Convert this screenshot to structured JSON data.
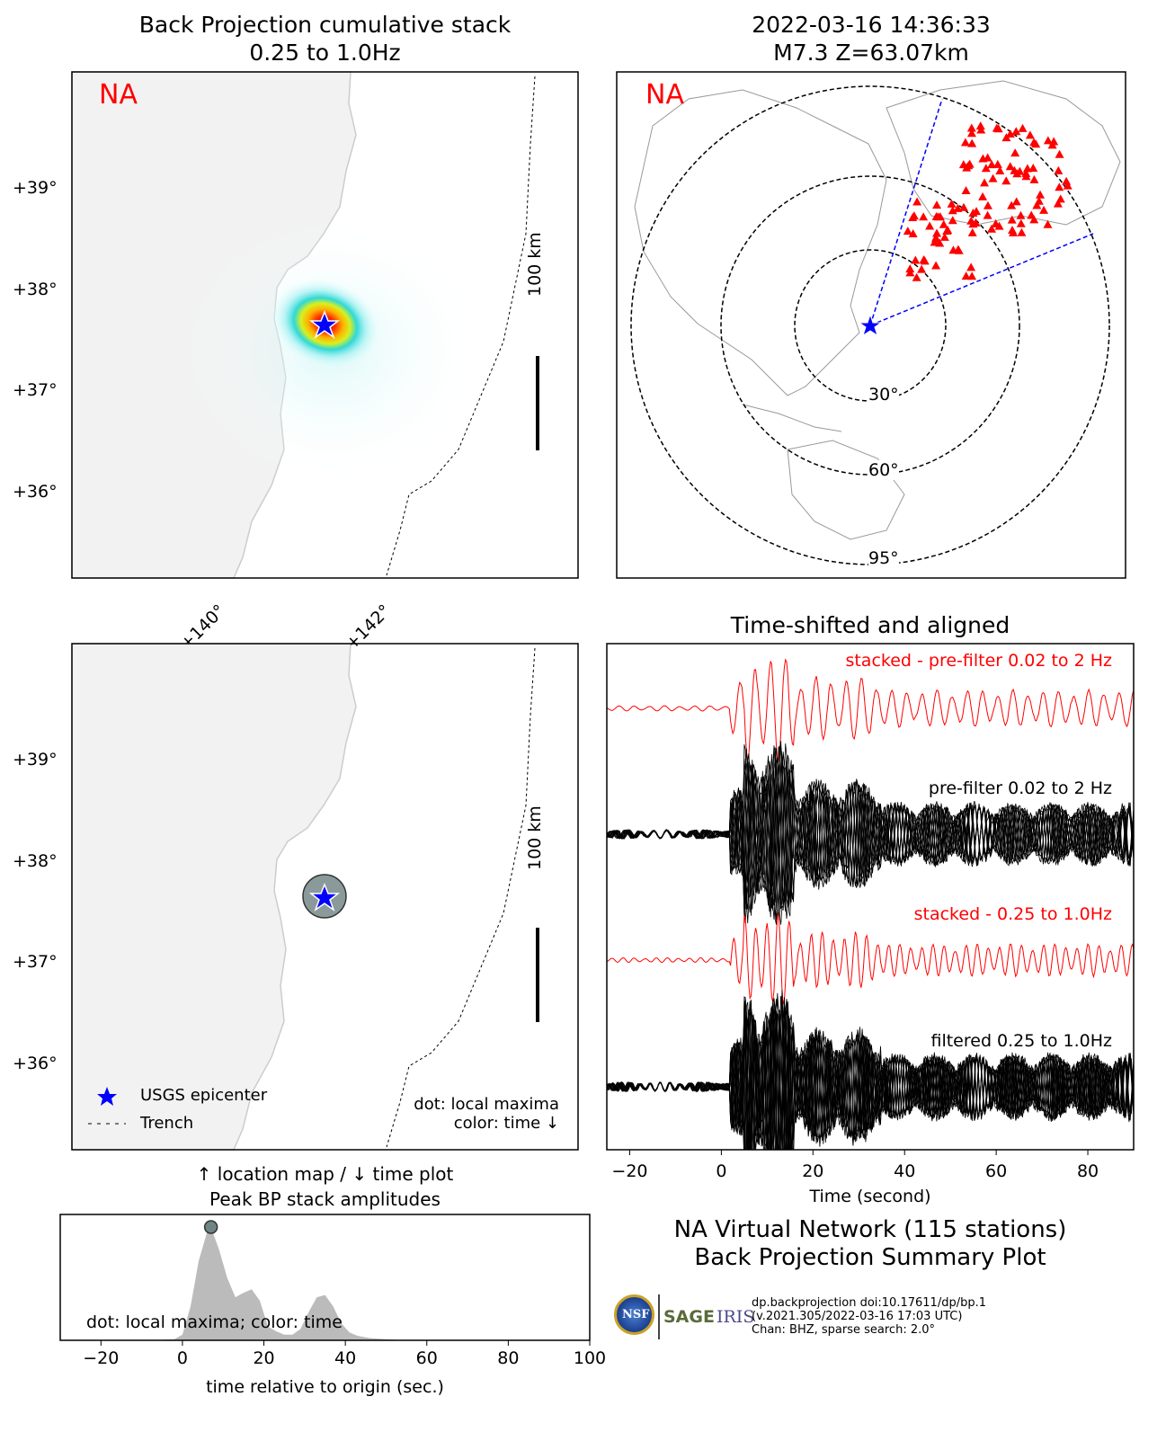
{
  "maps_panel": {
    "title_line1": "Back Projection cumulative stack",
    "title_line2": "0.25 to 1.0Hz",
    "region_label": "NA",
    "lat_ticks": [
      "+39°",
      "+38°",
      "+37°",
      "+36°"
    ],
    "lon_ticks": [
      "+140°",
      "+142°"
    ],
    "scale_bar_label": "100 km",
    "legend_epicenter": "USGS epicenter",
    "legend_trench": "Trench",
    "note_line1": "dot: local maxima",
    "note_line2": "color: time ↓",
    "caption_line1": "↑ location map / ↓ time plot",
    "caption_line2": "Peak BP stack amplitudes",
    "epicenter_color": "#0000ff",
    "region_label_color": "#ff0000"
  },
  "event_panel": {
    "title_line1": "2022-03-16 14:36:33",
    "title_line2": "M7.3 Z=63.07km",
    "region_label": "NA",
    "ring_labels": [
      "30°",
      "60°",
      "95°"
    ],
    "station_color": "#ff0000"
  },
  "traces_panel": {
    "title": "Time-shifted and aligned",
    "label_stacked_broadband": "stacked - pre-filter 0.02 to 2 Hz",
    "label_broadband": "pre-filter 0.02 to 2 Hz",
    "label_stacked_filtered": "stacked - 0.25 to 1.0Hz",
    "label_filtered": "filtered 0.25 to 1.0Hz",
    "xlabel": "Time (second)",
    "x_ticks": [
      "−20",
      "0",
      "20",
      "40",
      "60",
      "80"
    ]
  },
  "chart_data": {
    "type": "area",
    "x_ticks": [
      "−20",
      "0",
      "20",
      "40",
      "60",
      "80",
      "100"
    ],
    "xlabel": "time relative to origin (sec.)",
    "xlim": [
      -30,
      100
    ],
    "note": "dot: local maxima; color: time",
    "x": [
      -30,
      -8,
      -2,
      0,
      2,
      4,
      6,
      7,
      9,
      11,
      13,
      15,
      17,
      19,
      21,
      23,
      25,
      27,
      29,
      31,
      33,
      35,
      37,
      39,
      41,
      43,
      46,
      50,
      55,
      60,
      100
    ],
    "values": [
      0,
      0,
      0.01,
      0.05,
      0.3,
      0.7,
      0.95,
      1.0,
      0.8,
      0.55,
      0.38,
      0.42,
      0.45,
      0.35,
      0.12,
      0.08,
      0.05,
      0.05,
      0.1,
      0.25,
      0.38,
      0.4,
      0.3,
      0.15,
      0.07,
      0.04,
      0.02,
      0.01,
      0,
      0,
      0
    ],
    "peak": {
      "x": 7,
      "y": 1.0
    }
  },
  "summary": {
    "line1": "NA Virtual Network (115 stations)",
    "line2": "Back Projection Summary Plot",
    "footer_line1": "dp.backprojection doi:10.17611/dp/bp.1",
    "footer_line2": "(v.2021.305/2022-03-16 17:03 UTC)",
    "footer_line3": "Chan: BHZ, sparse search: 2.0°",
    "logo_nsf": "NSF",
    "logo_sage": "SAGE",
    "logo_iris": "IRIS"
  }
}
